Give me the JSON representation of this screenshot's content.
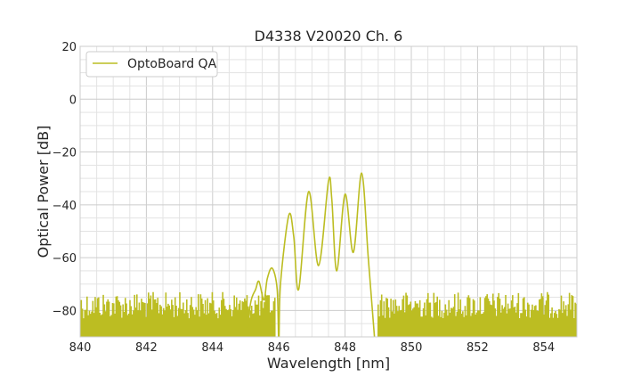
{
  "chart_data": {
    "type": "line",
    "title": "D4338 V20020 Ch. 6",
    "xlabel": "Wavelength [nm]",
    "ylabel": "Optical Power [dB]",
    "xlim": [
      840,
      855
    ],
    "ylim": [
      -90,
      20
    ],
    "xticks": [
      840,
      842,
      844,
      846,
      848,
      850,
      852,
      854
    ],
    "yticks": [
      20,
      0,
      -20,
      -40,
      -60,
      -80
    ],
    "xtick_labels": [
      "840",
      "842",
      "844",
      "846",
      "848",
      "850",
      "852",
      "854"
    ],
    "ytick_labels": [
      "20",
      "0",
      "−20",
      "−40",
      "−60",
      "−80"
    ],
    "grid": true,
    "legend_position": "top-left",
    "series": [
      {
        "name": "OptoBoard QA",
        "color": "#bcbd22",
        "peaks": [
          {
            "x": 846.3,
            "y": -44
          },
          {
            "x": 846.9,
            "y": -35
          },
          {
            "x": 847.5,
            "y": -31
          },
          {
            "x": 848.0,
            "y": -36
          },
          {
            "x": 848.5,
            "y": -28
          }
        ],
        "dips": [
          {
            "x": 846.6,
            "y": -72
          },
          {
            "x": 847.2,
            "y": -63
          },
          {
            "x": 847.75,
            "y": -65
          },
          {
            "x": 848.25,
            "y": -58
          }
        ],
        "side_bumps": [
          {
            "x": 845.4,
            "y": -69
          },
          {
            "x": 845.8,
            "y": -64
          }
        ],
        "noise_floor": {
          "top": -73,
          "bottom": -90,
          "x_ranges": [
            [
              840,
              845.9
            ],
            [
              849.0,
              855
            ]
          ]
        }
      }
    ]
  }
}
